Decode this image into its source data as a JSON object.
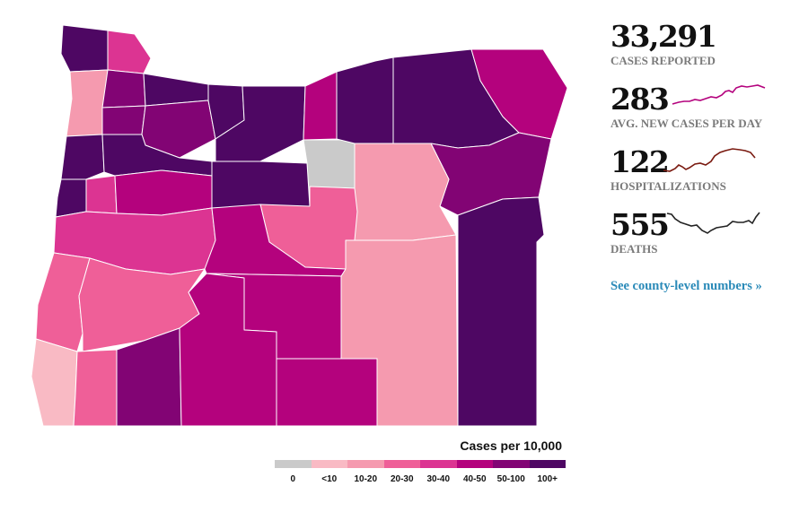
{
  "map": {
    "colors": {
      "0": "#cacaca",
      "lt10": "#f9bac4",
      "10-20": "#f59aaf",
      "20-30": "#ef5f98",
      "30-40": "#dc3492",
      "40-50": "#b4027d",
      "50-100": "#820474",
      "100+": "#4e0763"
    }
  },
  "legend": {
    "title": "Cases per 10,000",
    "bins": [
      {
        "label": "0",
        "color": "#cacaca"
      },
      {
        "label": "<10",
        "color": "#f9bac4"
      },
      {
        "label": "10-20",
        "color": "#f59aaf"
      },
      {
        "label": "20-30",
        "color": "#ef5f98"
      },
      {
        "label": "30-40",
        "color": "#dc3492"
      },
      {
        "label": "40-50",
        "color": "#b4027d"
      },
      {
        "label": "50-100",
        "color": "#820474"
      },
      {
        "label": "100+",
        "color": "#4e0763"
      }
    ]
  },
  "stats": {
    "cases": {
      "value": "33,291",
      "label": "CASES REPORTED"
    },
    "avg_new": {
      "value": "283",
      "label": "AVG. NEW CASES PER DAY",
      "color": "#b4027d"
    },
    "hospitalizations": {
      "value": "122",
      "label": "HOSPITALIZATIONS",
      "color": "#7a1a10"
    },
    "deaths": {
      "value": "555",
      "label": "DEATHS",
      "color": "#222222"
    },
    "link_text": "See county-level numbers »",
    "link_color": "#2a8ab8"
  }
}
